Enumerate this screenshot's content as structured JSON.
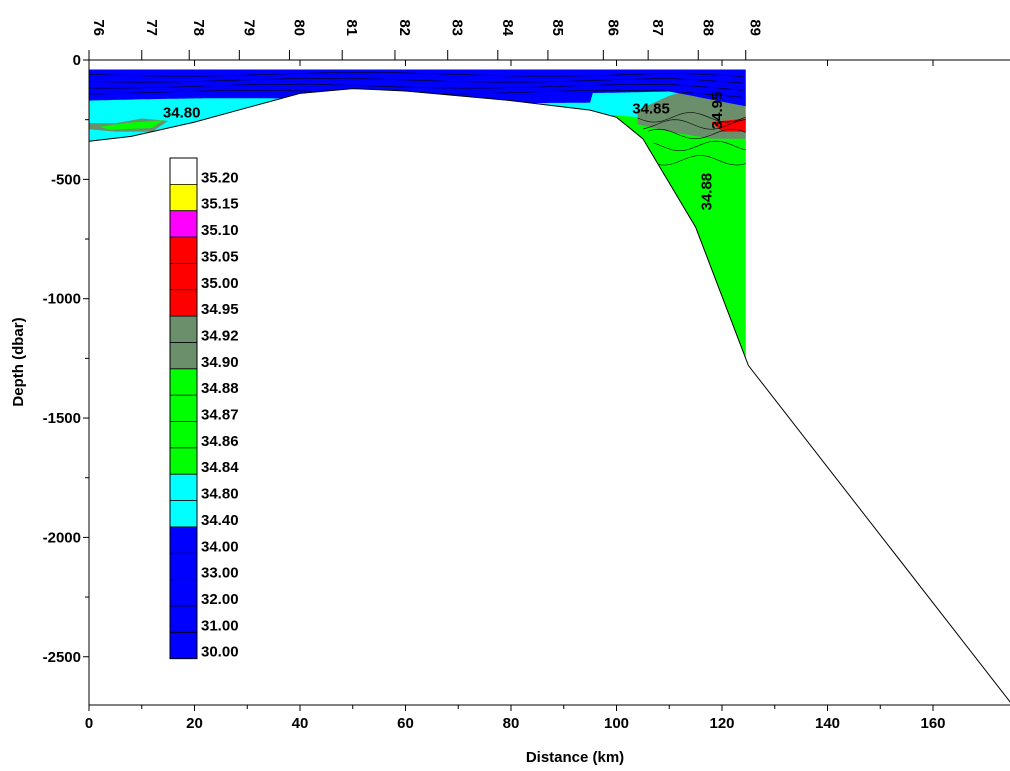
{
  "chart_data": {
    "type": "heatmap",
    "title": "",
    "xlabel": "Distance (km)",
    "ylabel": "Depth (dbar)",
    "xlim": [
      0,
      175
    ],
    "ylim": [
      -2700,
      0
    ],
    "x_ticks": [
      0,
      20,
      40,
      60,
      80,
      100,
      120,
      140,
      160
    ],
    "y_ticks": [
      0,
      -500,
      -1000,
      -1500,
      -2000,
      -2500
    ],
    "x_tick_labels": [
      "0",
      "20",
      "40",
      "60",
      "80",
      "100",
      "120",
      "140",
      "160"
    ],
    "y_tick_labels": [
      "0",
      "-500",
      "-1000",
      "-1500",
      "-2000",
      "-2500"
    ],
    "stations": [
      {
        "label": "76",
        "distance_km": 0
      },
      {
        "label": "77",
        "distance_km": 10
      },
      {
        "label": "78",
        "distance_km": 19
      },
      {
        "label": "79",
        "distance_km": 28.5
      },
      {
        "label": "80",
        "distance_km": 38
      },
      {
        "label": "81",
        "distance_km": 48
      },
      {
        "label": "82",
        "distance_km": 58
      },
      {
        "label": "83",
        "distance_km": 68
      },
      {
        "label": "84",
        "distance_km": 77.5
      },
      {
        "label": "85",
        "distance_km": 87
      },
      {
        "label": "86",
        "distance_km": 97.5
      },
      {
        "label": "87",
        "distance_km": 106
      },
      {
        "label": "88",
        "distance_km": 115.5
      },
      {
        "label": "89",
        "distance_km": 124.5
      }
    ],
    "bathymetry": [
      [
        0,
        -340
      ],
      [
        8,
        -320
      ],
      [
        20,
        -260
      ],
      [
        30,
        -200
      ],
      [
        40,
        -140
      ],
      [
        50,
        -120
      ],
      [
        60,
        -130
      ],
      [
        80,
        -170
      ],
      [
        95,
        -210
      ],
      [
        100,
        -240
      ],
      [
        105,
        -330
      ],
      [
        115,
        -700
      ],
      [
        125,
        -1280
      ],
      [
        175,
        -2700
      ]
    ],
    "legend_levels": [
      {
        "value": "35.20",
        "color": "#ffffff"
      },
      {
        "value": "35.15",
        "color": "#ffff00"
      },
      {
        "value": "35.10",
        "color": "#ff00ff"
      },
      {
        "value": "35.05",
        "color": "#ff0000"
      },
      {
        "value": "35.00",
        "color": "#ff0000"
      },
      {
        "value": "34.95",
        "color": "#ff0000"
      },
      {
        "value": "34.92",
        "color": "#6b8e6b"
      },
      {
        "value": "34.90",
        "color": "#6b8e6b"
      },
      {
        "value": "34.88",
        "color": "#00ff00"
      },
      {
        "value": "34.87",
        "color": "#00ff00"
      },
      {
        "value": "34.86",
        "color": "#00ff00"
      },
      {
        "value": "34.84",
        "color": "#00ff00"
      },
      {
        "value": "34.80",
        "color": "#00ffff"
      },
      {
        "value": "34.40",
        "color": "#00ffff"
      },
      {
        "value": "34.00",
        "color": "#0000ff"
      },
      {
        "value": "33.00",
        "color": "#0000ff"
      },
      {
        "value": "32.00",
        "color": "#0000ff"
      },
      {
        "value": "31.00",
        "color": "#0000ff"
      },
      {
        "value": "30.00",
        "color": "#0000ff"
      }
    ],
    "contour_labels": [
      {
        "text": "34.80",
        "x": 14,
        "y": -240,
        "rotate": 0
      },
      {
        "text": "34.85",
        "x": 103,
        "y": -225,
        "rotate": 0
      },
      {
        "text": "34.95",
        "x": 120,
        "y": -290,
        "rotate": -90
      },
      {
        "text": "34.88",
        "x": 118,
        "y": -630,
        "rotate": -90
      }
    ],
    "colors": {
      "surface_blue": "#0000ff",
      "cyan": "#00ffff",
      "green": "#00ff00",
      "sage": "#6b8e6b",
      "red": "#ff0000"
    }
  }
}
